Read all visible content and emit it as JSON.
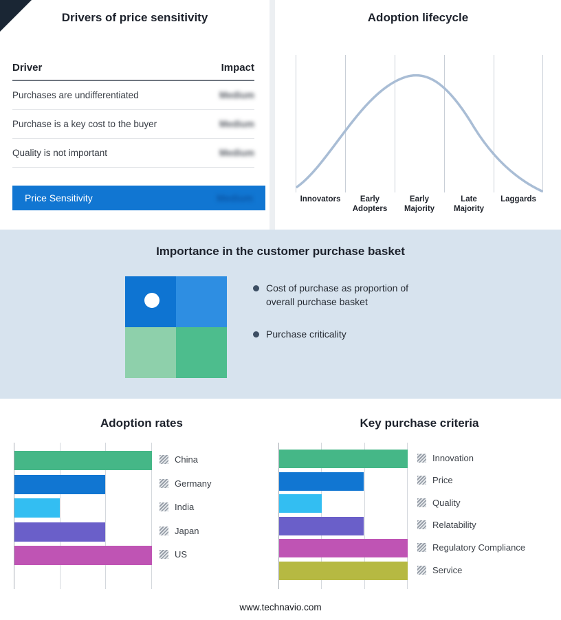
{
  "meta": {
    "footer": "www.technavio.com"
  },
  "colors": {
    "accent_blue": "#1176d2",
    "band_background": "#d7e3ee",
    "curve": "#a9bdd5",
    "fold": "#1a2634",
    "quad_top_left": "#0e74d2",
    "quad_top_right": "#2e8ee2",
    "quad_bottom_left": "#8ed0ab",
    "quad_bottom_right": "#4dbd8d"
  },
  "drivers": {
    "title": "Drivers of price sensitivity",
    "columns": {
      "driver": "Driver",
      "impact": "Impact"
    },
    "rows": [
      {
        "driver": "Purchases are undifferentiated",
        "impact": "Medium"
      },
      {
        "driver": "Purchase is a key cost to the buyer",
        "impact": "Medium"
      },
      {
        "driver": "Quality is not important",
        "impact": "Medium"
      }
    ],
    "summary_row": {
      "label": "Price Sensitivity",
      "impact": "Medium"
    },
    "impact_values_blurred": true
  },
  "basket": {
    "title": "Importance in the customer purchase basket",
    "bullets": [
      "Cost of purchase as proportion of overall purchase basket",
      "Purchase criticality"
    ]
  },
  "chart_data": [
    {
      "id": "adoption_lifecycle",
      "type": "line",
      "title": "Adoption lifecycle",
      "x": [
        "Innovators",
        "Early Adopters",
        "Early Majority",
        "Late Majority",
        "Laggards"
      ],
      "shape": "bell curve rising from Innovators, peaking at Early Majority, falling to Laggards",
      "grid": true,
      "legend_position": "none"
    },
    {
      "id": "adoption_rates",
      "type": "bar",
      "orientation": "horizontal",
      "title": "Adoption rates",
      "categories": [
        "China",
        "Germany",
        "India",
        "Japan",
        "US"
      ],
      "values": [
        100,
        66,
        33,
        66,
        100
      ],
      "colors": [
        "#45b787",
        "#1176d2",
        "#33bef2",
        "#6a5fc9",
        "#bf54b4"
      ],
      "xlim": [
        0,
        100
      ],
      "grid": true,
      "legend_position": "right"
    },
    {
      "id": "key_purchase_criteria",
      "type": "bar",
      "orientation": "horizontal",
      "title": "Key purchase criteria",
      "categories": [
        "Innovation",
        "Price",
        "Quality",
        "Relatability",
        "Regulatory Compliance",
        "Service"
      ],
      "values": [
        100,
        66,
        33,
        66,
        100,
        100
      ],
      "colors": [
        "#45b787",
        "#1176d2",
        "#33bef2",
        "#6a5fc9",
        "#bf54b4",
        "#b6b942"
      ],
      "xlim": [
        0,
        100
      ],
      "grid": true,
      "legend_position": "right"
    }
  ]
}
